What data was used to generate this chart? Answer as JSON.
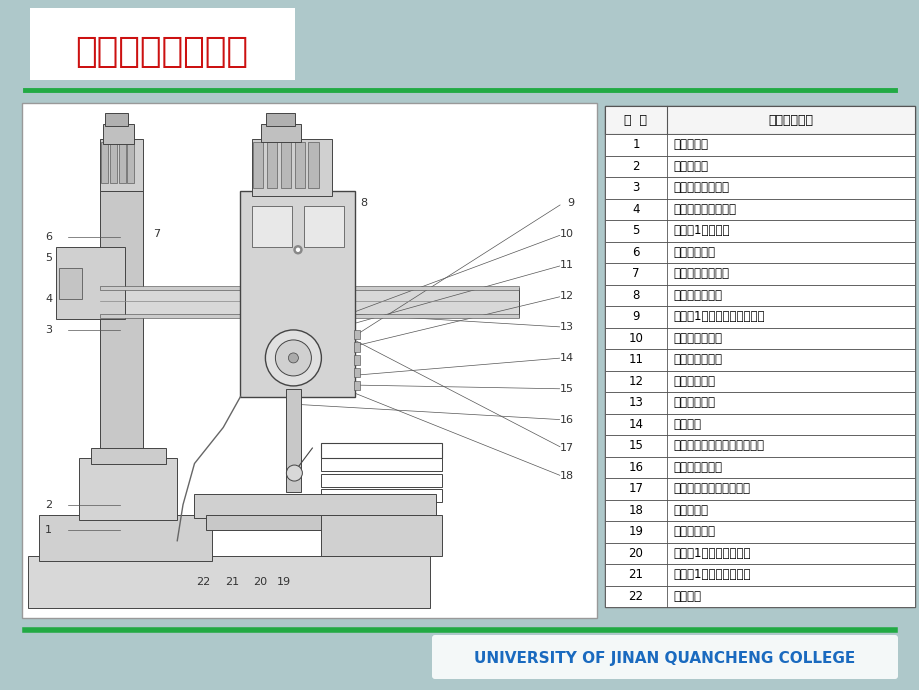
{
  "bg_color": "#aec8ca",
  "green_line_color": "#22aa44",
  "footer_text": "UNIVERSITY OF JINAN QUANCHENG COLLEGE",
  "footer_text_color": "#1a6abf",
  "table_header": [
    "部  位",
    "操纵手柄名称"
  ],
  "table_rows": [
    [
      "1",
      "冷却泵开关"
    ],
    [
      "2",
      "总电源开关"
    ],
    [
      "3",
      "主轴转速预选旋扑"
    ],
    [
      "4",
      "主轴进给量预选旋扑"
    ],
    [
      "5",
      "主轴符1移动手轮"
    ],
    [
      "6",
      "主轴移动手柄"
    ],
    [
      "7",
      "定程切削限位手柄"
    ],
    [
      "8",
      "刻度盘微调手把"
    ],
    [
      "9",
      "主轴符1、立柱夹紧选择开关"
    ],
    [
      "10",
      "主电机启动按鈕"
    ],
    [
      "11",
      "主电机停止按鈕"
    ],
    [
      "12",
      "摇臂上升按鈕"
    ],
    [
      "13",
      "摇臂下降按鈕"
    ],
    [
      "14",
      "总停按鈕"
    ],
    [
      "15",
      "主轴正反转、变速、空挡手柄"
    ],
    [
      "16",
      "主轴平衡调整轴"
    ],
    [
      "17",
      "接通、断开机动进给手柄"
    ],
    [
      "18",
      "照明灯开关"
    ],
    [
      "19",
      "微动进给手轮"
    ],
    [
      "20",
      "主轴符1、立柱松开按鈕"
    ],
    [
      "21",
      "主轴符1、立柱夹紧按鈕"
    ],
    [
      "22",
      "冷却开关"
    ]
  ],
  "logo_text": "济南大学泉城学院",
  "logo_text_color": "#cc1111"
}
